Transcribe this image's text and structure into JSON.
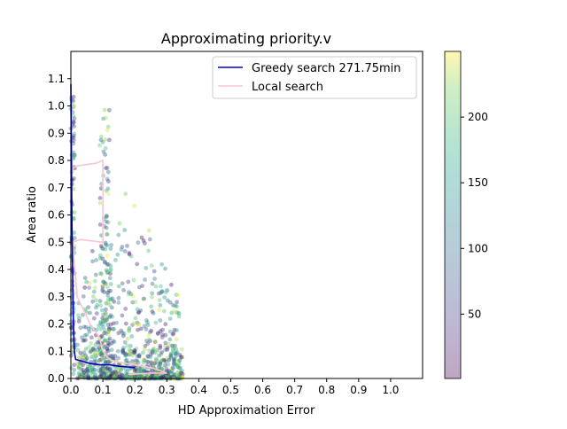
{
  "chart_data": {
    "type": "scatter",
    "title": "Approximating priority.v",
    "xlabel": "HD Approximation Error",
    "ylabel": "Area ratio",
    "xlim": [
      0.0,
      1.1
    ],
    "ylim": [
      0.0,
      1.2
    ],
    "x_ticks": [
      0.0,
      0.1,
      0.2,
      0.3,
      0.4,
      0.5,
      0.6,
      0.7,
      0.8,
      0.9,
      1.0
    ],
    "y_ticks": [
      0.0,
      0.1,
      0.2,
      0.3,
      0.4,
      0.5,
      0.6,
      0.7,
      0.8,
      0.9,
      1.0,
      1.1
    ],
    "x_tick_labels": [
      "0.0",
      "0.1",
      "0.2",
      "0.3",
      "0.4",
      "0.5",
      "0.6",
      "0.7",
      "0.8",
      "0.9",
      "1.0"
    ],
    "y_tick_labels": [
      "0.0",
      "0.1",
      "0.2",
      "0.3",
      "0.4",
      "0.5",
      "0.6",
      "0.7",
      "0.8",
      "0.9",
      "1.0",
      "1.1"
    ],
    "grid": false,
    "legend_position": "top-right",
    "legend": [
      {
        "label": "Greedy search 271.75min",
        "color": "#0000cc"
      },
      {
        "label": "Local search",
        "color": "#f7c6d0"
      }
    ],
    "colorbar": {
      "colormap": "viridis",
      "alpha": 0.35,
      "range": [
        1,
        250
      ],
      "ticks": [
        50,
        100,
        150,
        200
      ],
      "tick_labels": [
        "50",
        "100",
        "150",
        "200"
      ]
    },
    "series": [
      {
        "name": "Greedy search 271.75min",
        "type": "line",
        "color": "#0000cc",
        "x": [
          0.0,
          0.003,
          0.006,
          0.008,
          0.01,
          0.012,
          0.015,
          0.03,
          0.06,
          0.09,
          0.12,
          0.15,
          0.2
        ],
        "y": [
          1.08,
          0.6,
          0.33,
          0.2,
          0.13,
          0.09,
          0.07,
          0.065,
          0.055,
          0.05,
          0.05,
          0.045,
          0.04
        ]
      },
      {
        "name": "Local search",
        "type": "line",
        "color": "#f7c6d0",
        "x": [
          0.0,
          0.002,
          0.005,
          0.02,
          0.05,
          0.08,
          0.1,
          0.1,
          0.03,
          0.005,
          0.02,
          0.06,
          0.09,
          0.1,
          0.12,
          0.15,
          0.2,
          0.25,
          0.3,
          0.25,
          0.18
        ],
        "y": [
          1.0,
          0.85,
          0.77,
          0.78,
          0.785,
          0.79,
          0.8,
          0.5,
          0.51,
          0.5,
          0.3,
          0.2,
          0.15,
          0.1,
          0.07,
          0.06,
          0.05,
          0.04,
          0.02,
          0.02,
          0.015
        ]
      },
      {
        "name": "",
        "type": "scatter",
        "point_count": 1100,
        "x_range": [
          0.0,
          0.38
        ],
        "y_range": [
          0.0,
          1.05
        ],
        "color_range": [
          1,
          250
        ]
      }
    ]
  }
}
